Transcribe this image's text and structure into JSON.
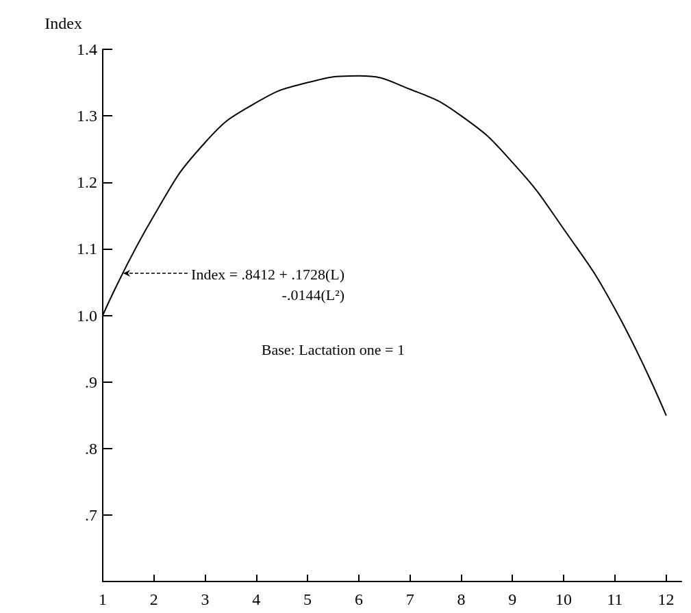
{
  "chart_data": {
    "type": "line",
    "ylabel": "Index",
    "x": [
      1,
      2,
      3,
      4,
      5,
      6,
      7,
      8,
      9,
      10,
      11,
      12
    ],
    "series": [
      {
        "color": "#000000",
        "values": [
          1.0,
          1.15,
          1.26,
          1.32,
          1.35,
          1.36,
          1.34,
          1.3,
          1.23,
          1.13,
          1.01,
          0.85
        ]
      }
    ],
    "xlim": [
      1,
      12.3
    ],
    "xticks": [
      1,
      2,
      3,
      4,
      5,
      6,
      7,
      8,
      9,
      10,
      11,
      12
    ],
    "ylim": [
      0.6,
      1.4
    ],
    "yticks": [
      {
        "value": 0.7,
        "label": ".7"
      },
      {
        "value": 0.8,
        "label": ".8"
      },
      {
        "value": 0.9,
        "label": ".9"
      },
      {
        "value": 1.0,
        "label": "1.0"
      },
      1.1,
      1.2,
      1.3,
      1.4
    ],
    "annotations": [
      "Index = .8412 + .1728(L)\n-.0144(L²)",
      "Base: Lactation one = 1"
    ],
    "grid": false,
    "marker": "none",
    "line_style": "solid"
  }
}
